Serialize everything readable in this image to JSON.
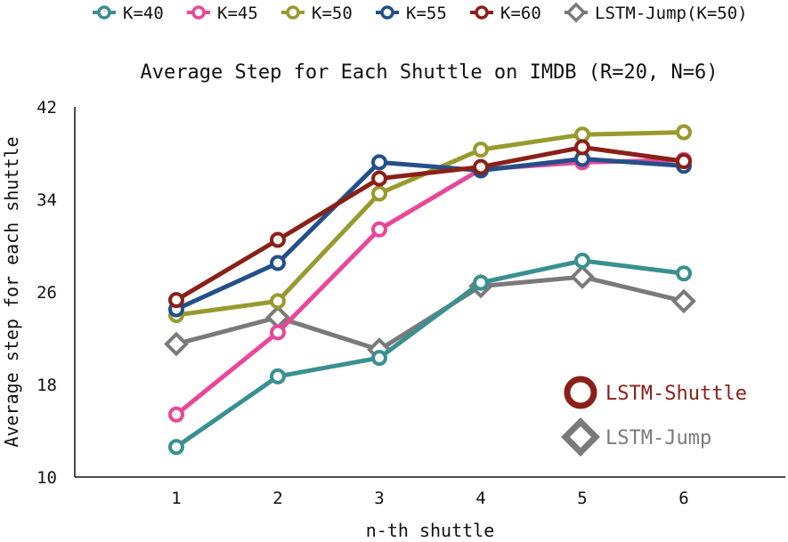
{
  "chart_data": {
    "type": "line",
    "title": "Average Step for Each Shuttle on IMDB (R=20, N=6)",
    "xlabel": "n-th shuttle",
    "ylabel": "Average step for each shuttle",
    "x": [
      1,
      2,
      3,
      4,
      5,
      6
    ],
    "x_ticks": [
      "1",
      "2",
      "3",
      "4",
      "5",
      "6"
    ],
    "xlim": [
      0,
      7
    ],
    "ylim": [
      10,
      42
    ],
    "y_ticks": [
      "10",
      "18",
      "26",
      "34",
      "42"
    ],
    "grid": false,
    "legend_position": "top",
    "series": [
      {
        "name": "K=40",
        "color": "#3a9090",
        "marker": "circle",
        "values": [
          12.6,
          18.7,
          20.3,
          26.8,
          28.7,
          27.6
        ]
      },
      {
        "name": "K=45",
        "color": "#e8479a",
        "marker": "circle",
        "values": [
          15.4,
          22.5,
          31.4,
          36.6,
          37.2,
          37.4
        ]
      },
      {
        "name": "K=50",
        "color": "#989a2e",
        "marker": "circle",
        "values": [
          24.0,
          25.2,
          34.5,
          38.3,
          39.6,
          39.8
        ]
      },
      {
        "name": "K=55",
        "color": "#23508a",
        "marker": "circle",
        "values": [
          24.5,
          28.5,
          37.2,
          36.5,
          37.5,
          36.9
        ]
      },
      {
        "name": "K=60",
        "color": "#8a2018",
        "marker": "circle",
        "values": [
          25.3,
          30.5,
          35.8,
          36.8,
          38.5,
          37.3
        ]
      },
      {
        "name": "LSTM-Jump(K=50)",
        "color": "#7a7a7a",
        "marker": "diamond",
        "values": [
          21.5,
          23.8,
          21.0,
          26.5,
          27.3,
          25.2
        ]
      }
    ],
    "annotations": [
      {
        "text": "LSTM-Shuttle",
        "color": "#8a2018",
        "marker": "circle"
      },
      {
        "text": "LSTM-Jump",
        "color": "#7a7a7a",
        "marker": "diamond"
      }
    ]
  }
}
